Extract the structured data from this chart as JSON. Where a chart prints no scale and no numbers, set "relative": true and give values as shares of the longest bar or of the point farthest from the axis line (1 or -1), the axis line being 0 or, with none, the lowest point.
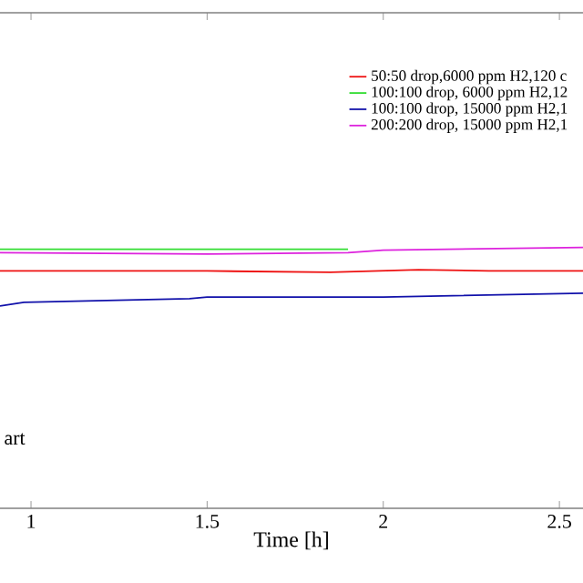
{
  "chart_data": {
    "type": "line",
    "relative": true,
    "xlabel": "Time [h]",
    "xlim": [
      0.912,
      2.567
    ],
    "xticks": [
      1,
      1.5,
      2,
      2.5
    ],
    "legend": "top right",
    "marker": "none",
    "line_style": "solid",
    "grid": false,
    "annotations": [
      "art"
    ],
    "series": [
      {
        "name": "50:50 drop,6000 ppm H2,120 c",
        "color": "#ee1111",
        "x": [
          0.912,
          1.5,
          1.85,
          2.1,
          2.3,
          2.567
        ],
        "values": [
          0.91,
          0.91,
          0.905,
          0.915,
          0.91,
          0.91
        ]
      },
      {
        "name": "100:100 drop, 6000 ppm H2,12",
        "color": "#33dd33",
        "x": [
          0.912,
          1.5,
          1.9
        ],
        "values": [
          0.993,
          0.993,
          0.993
        ]
      },
      {
        "name": "100:100 drop, 15000 ppm H2,1",
        "color": "#1111aa",
        "x": [
          0.912,
          0.98,
          1.45,
          1.5,
          2.0,
          2.567
        ],
        "values": [
          0.776,
          0.79,
          0.804,
          0.81,
          0.81,
          0.825
        ]
      },
      {
        "name": "200:200 drop, 15000 ppm H2,1",
        "color": "#dd22dd",
        "x": [
          0.912,
          1.5,
          1.9,
          2.0,
          2.567
        ],
        "values": [
          0.98,
          0.975,
          0.98,
          0.99,
          1.0
        ]
      }
    ]
  }
}
